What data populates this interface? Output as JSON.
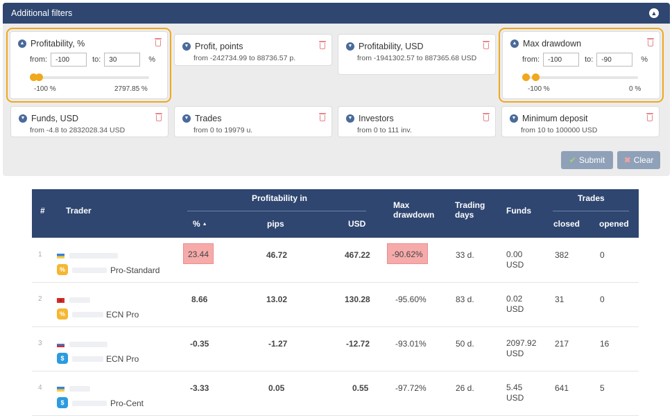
{
  "panel": {
    "title": "Additional filters",
    "collapse_icon": "chevron-up-icon",
    "submit_label": "Submit",
    "clear_label": "Clear"
  },
  "filters": {
    "profitability_pct": {
      "title": "Profitability, %",
      "from_label": "from:",
      "from_value": "-100",
      "to_label": "to:",
      "to_value": "30",
      "unit": "%",
      "min_label": "-100 %",
      "max_label": "2797.85 %"
    },
    "profit_points": {
      "title": "Profit, points",
      "range": "from -242734.99 to 88736.57 p."
    },
    "profitability_usd": {
      "title": "Profitability, USD",
      "range": "from -1941302.57 to 887365.68 USD"
    },
    "max_drawdown": {
      "title": "Max drawdown",
      "from_label": "from:",
      "from_value": "-100",
      "to_label": "to:",
      "to_value": "-90",
      "unit": "%",
      "min_label": "-100 %",
      "max_label": "0 %"
    },
    "funds_usd": {
      "title": "Funds, USD",
      "range": "from -4.8 to 2832028.34 USD"
    },
    "trades": {
      "title": "Trades",
      "range": "from 0 to 19979 u."
    },
    "investors": {
      "title": "Investors",
      "range": "from 0 to 111 inv."
    },
    "minimum_deposit": {
      "title": "Minimum deposit",
      "range": "from 10 to 100000 USD"
    }
  },
  "table": {
    "headers": {
      "num": "#",
      "trader": "Trader",
      "profitability_in": "Profitability in",
      "pct": "%",
      "pips": "pips",
      "usd": "USD",
      "max_drawdown": "Max drawdown",
      "trading_days": "Trading days",
      "funds": "Funds",
      "trades": "Trades",
      "closed": "closed",
      "opened": "opened"
    },
    "rows": [
      {
        "num": "1",
        "account_type": "Pro-Standard",
        "badge": "%",
        "pct": "23.44",
        "pips": "46.72",
        "usd": "467.22",
        "drawdown": "-90.62%",
        "days": "33 d.",
        "funds": "0.00",
        "funds_cur": "USD",
        "closed": "382",
        "opened": "0"
      },
      {
        "num": "2",
        "account_type": "ECN Pro",
        "badge": "%",
        "pct": "8.66",
        "pips": "13.02",
        "usd": "130.28",
        "drawdown": "-95.60%",
        "days": "83 d.",
        "funds": "0.02",
        "funds_cur": "USD",
        "closed": "31",
        "opened": "0"
      },
      {
        "num": "3",
        "account_type": "ECN Pro",
        "badge": "$",
        "pct": "-0.35",
        "pips": "-1.27",
        "usd": "-12.72",
        "drawdown": "-93.01%",
        "days": "50 d.",
        "funds": "2097.92",
        "funds_cur": "USD",
        "closed": "217",
        "opened": "16"
      },
      {
        "num": "4",
        "account_type": "Pro-Cent",
        "badge": "$",
        "pct": "-3.33",
        "pips": "0.05",
        "usd": "0.55",
        "drawdown": "-97.72%",
        "days": "26 d.",
        "funds": "5.45",
        "funds_cur": "USD",
        "closed": "641",
        "opened": "5"
      }
    ]
  },
  "colors": {
    "header_bg": "#2e4670",
    "highlight_outline": "#f0a81c",
    "highlight_cell": "#f6aaaa",
    "slider": "#f0a81c"
  }
}
